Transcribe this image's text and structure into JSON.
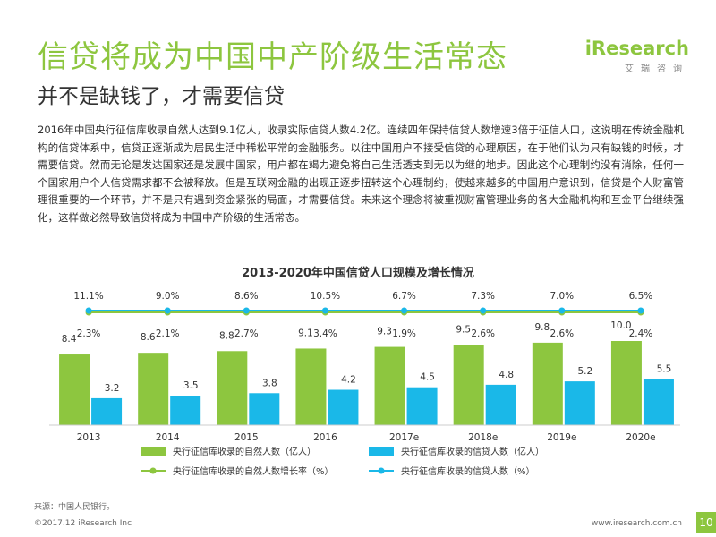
{
  "page": {
    "title": "信贷将成为中国中产阶级生活常态",
    "subtitle": "并不是缺钱了，才需要信贷",
    "paragraph": "2016年中国央行征信库收录自然人达到9.1亿人，收录实际信贷人数4.2亿。连续四年保持信贷人数增速3倍于征信人口，这说明在传统金融机构的信贷体系中，信贷正逐渐成为居民生活中稀松平常的金融服务。以往中国用户不接受信贷的心理原因，在于他们认为只有缺钱的时候，才需要信贷。然而无论是发达国家还是发展中国家，用户都在竭力避免将自己生活透支到无以为继的地步。因此这个心理制约没有消除，任何一个国家用户个人信贷需求都不会被释放。但是互联网金融的出现正逐步扭转这个心理制约，使越来越多的中国用户意识到，信贷是个人财富管理很重要的一个环节，并不是只有遇到资金紧张的局面，才需要信贷。未来这个理念将被重视财富管理业务的各大金融机构和互金平台继续强化，这样做必然导致信贷将成为中国中产阶级的生活常态。",
    "source": "来源：中国人民银行。",
    "copyright": "©2017.12 iResearch Inc",
    "website": "www.iresearch.com.cn",
    "page_number": "10"
  },
  "logo": {
    "main": "iResearch",
    "sub": "艾瑞咨询"
  },
  "colors": {
    "green": "#8dc63f",
    "blue": "#1ab8e8",
    "text": "#333333"
  },
  "chart_data": {
    "type": "bar",
    "title": "2013-2020年中国信贷人口规模及增长情况",
    "categories": [
      "2013",
      "2014",
      "2015",
      "2016",
      "2017e",
      "2018e",
      "2019e",
      "2020e"
    ],
    "series": [
      {
        "name": "央行征信库收录的自然人数（亿人）",
        "type": "bar",
        "color": "#8dc63f",
        "values": [
          8.4,
          8.6,
          8.8,
          9.1,
          9.3,
          9.5,
          9.8,
          10.0
        ],
        "labels": [
          "8.4",
          "8.6",
          "8.8",
          "9.1",
          "9.3",
          "9.5",
          "9.8",
          "10.0"
        ]
      },
      {
        "name": "央行征信库收录的信贷人数（亿人）",
        "type": "bar",
        "color": "#1ab8e8",
        "values": [
          3.2,
          3.5,
          3.8,
          4.2,
          4.5,
          4.8,
          5.2,
          5.5
        ],
        "labels": [
          "3.2",
          "3.5",
          "3.8",
          "4.2",
          "4.5",
          "4.8",
          "5.2",
          "5.5"
        ]
      },
      {
        "name": "央行征信库收录的自然人数增长率（%）",
        "type": "line",
        "color": "#8dc63f",
        "values": [
          2.3,
          2.1,
          2.7,
          3.4,
          1.9,
          2.6,
          2.6,
          2.4
        ],
        "labels": [
          "2.3%",
          "2.1%",
          "2.7%",
          "3.4%",
          "1.9%",
          "2.6%",
          "2.6%",
          "2.4%"
        ]
      },
      {
        "name": "央行征信库收录的信贷人数（%）",
        "type": "line",
        "color": "#1ab8e8",
        "values": [
          11.1,
          9.0,
          8.6,
          10.5,
          6.7,
          7.3,
          7.0,
          6.5
        ],
        "labels": [
          "11.1%",
          "9.0%",
          "8.6%",
          "10.5%",
          "6.7%",
          "7.3%",
          "7.0%",
          "6.5%"
        ]
      }
    ],
    "legend_position": "bottom",
    "grid": false
  }
}
